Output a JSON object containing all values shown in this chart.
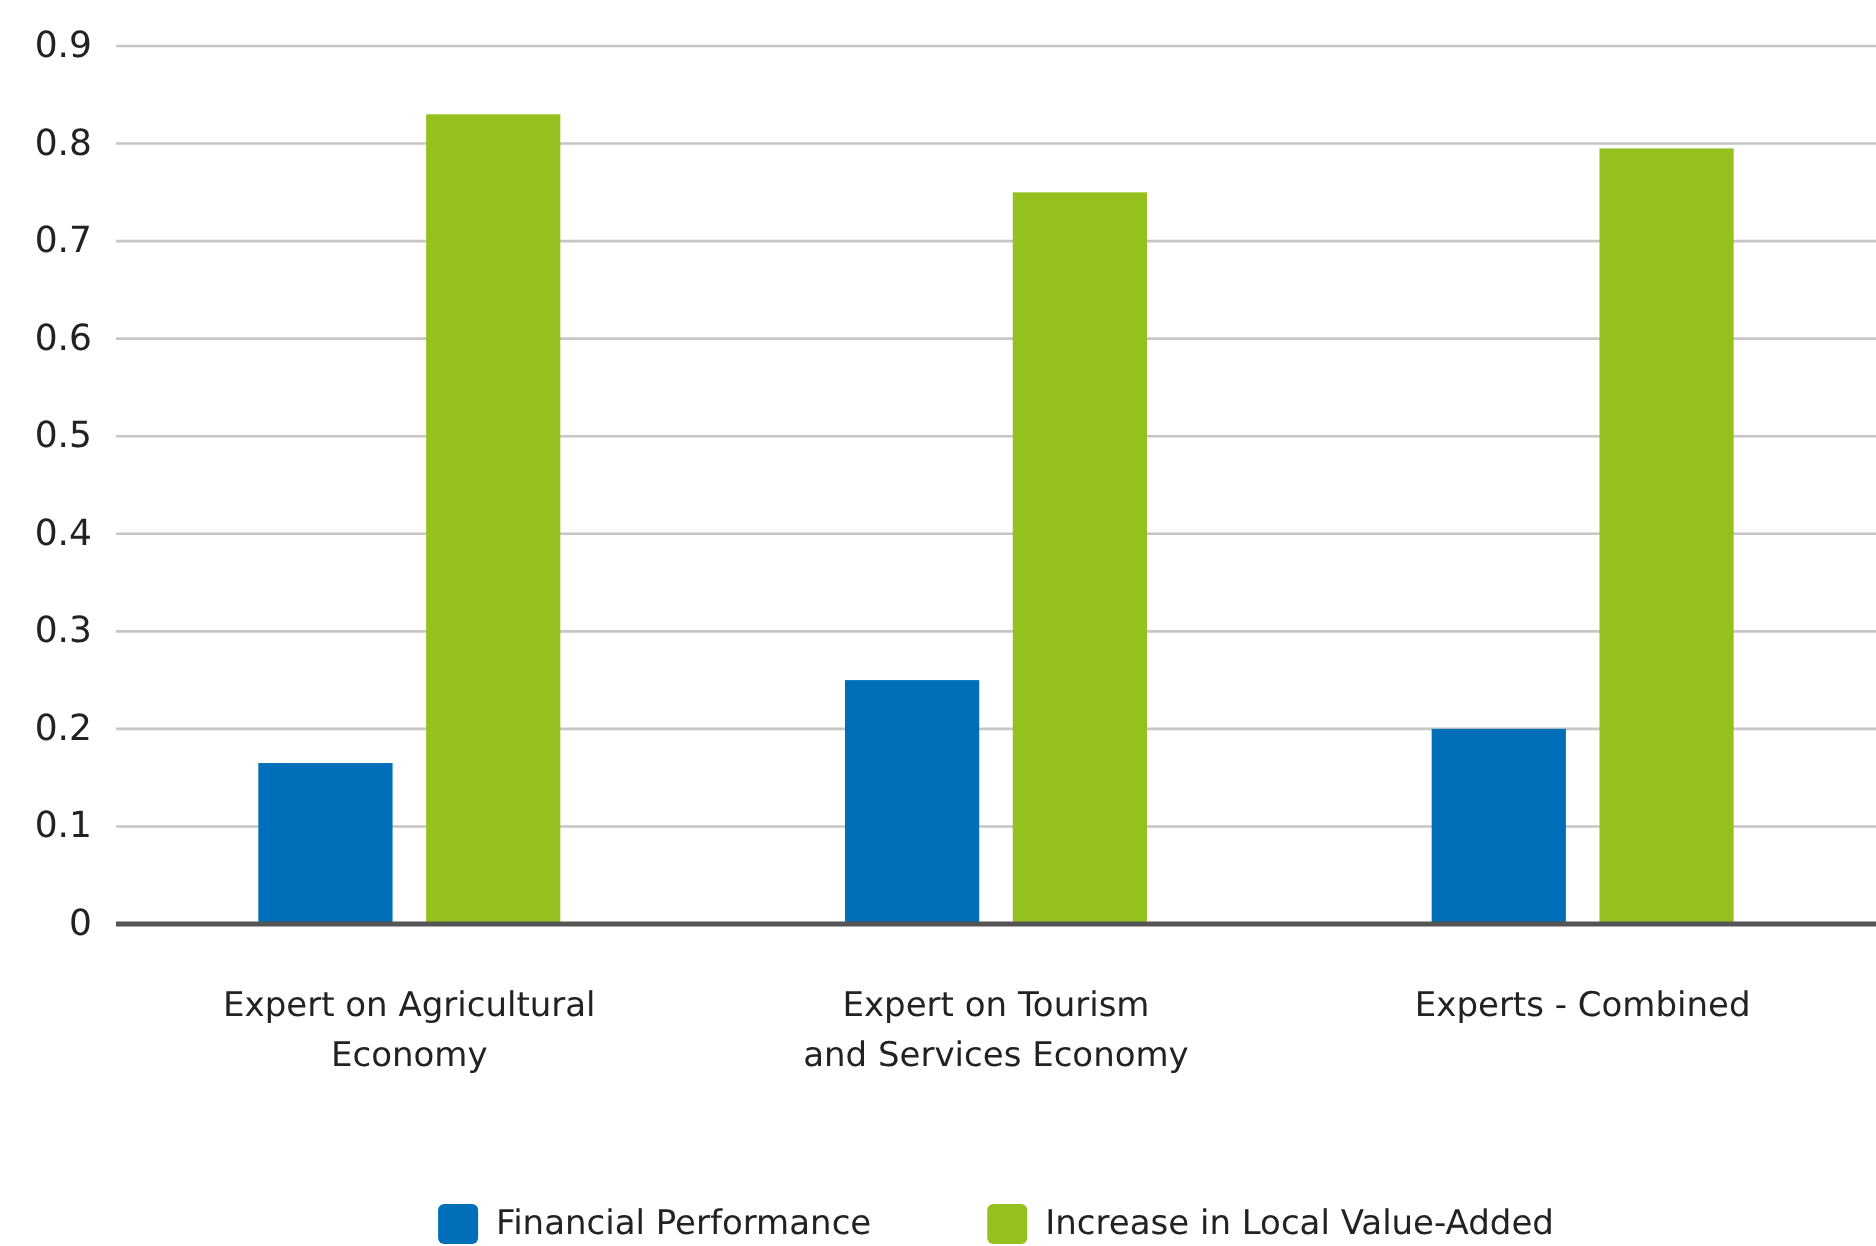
{
  "chart_data": {
    "type": "bar",
    "categories": [
      "Expert on Agricultural\nEconomy",
      "Expert on Tourism\nand Services Economy",
      "Experts - Combined"
    ],
    "series": [
      {
        "name": "Financial Performance",
        "color": "#006fb9",
        "values": [
          0.165,
          0.25,
          0.2
        ]
      },
      {
        "name": "Increase in Local Value-Added",
        "color": "#95c11f",
        "values": [
          0.83,
          0.75,
          0.795
        ]
      }
    ],
    "ylim": [
      0,
      0.9
    ],
    "yticks": [
      0,
      0.1,
      0.2,
      0.3,
      0.4,
      0.5,
      0.6,
      0.7,
      0.8,
      0.9
    ],
    "grid": "y",
    "legend": "bottom"
  }
}
